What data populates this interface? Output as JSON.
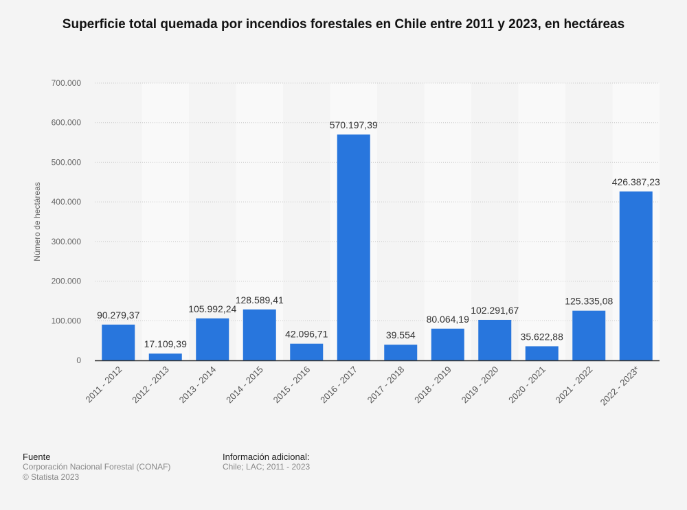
{
  "chart_data": {
    "type": "bar",
    "title": "Superficie total quemada por incendios forestales en Chile entre 2011 y 2023, en hectáreas",
    "xlabel": "",
    "ylabel": "Número de hectáreas",
    "ylim": [
      0,
      700000
    ],
    "yticks": [
      0,
      100000,
      200000,
      300000,
      400000,
      500000,
      600000,
      700000
    ],
    "ytick_labels": [
      "0",
      "100.000",
      "200.000",
      "300.000",
      "400.000",
      "500.000",
      "600.000",
      "700.000"
    ],
    "grid": true,
    "bar_color": "#2876dd",
    "categories": [
      "2011 - 2012",
      "2012 - 2013",
      "2013 - 2014",
      "2014 - 2015",
      "2015 - 2016",
      "2016 - 2017",
      "2017 - 2018",
      "2018 - 2019",
      "2019 - 2020",
      "2020 - 2021",
      "2021 - 2022",
      "2022 - 2023*"
    ],
    "values": [
      90279.37,
      17109.39,
      105992.24,
      128589.41,
      42096.71,
      570197.39,
      39554,
      80064.19,
      102291.67,
      35622.88,
      125335.08,
      426387.23
    ],
    "value_labels": [
      "90.279,37",
      "17.109,39",
      "105.992,24",
      "128.589,41",
      "42.096,71",
      "570.197,39",
      "39.554",
      "80.064,19",
      "102.291,67",
      "35.622,88",
      "125.335,08",
      "426.387,23"
    ]
  },
  "footer": {
    "source_heading": "Fuente",
    "source_text": "Corporación Nacional Forestal (CONAF)",
    "copyright": "© Statista 2023",
    "info_heading": "Información adicional:",
    "info_text": "Chile; LAC; 2011 - 2023"
  }
}
